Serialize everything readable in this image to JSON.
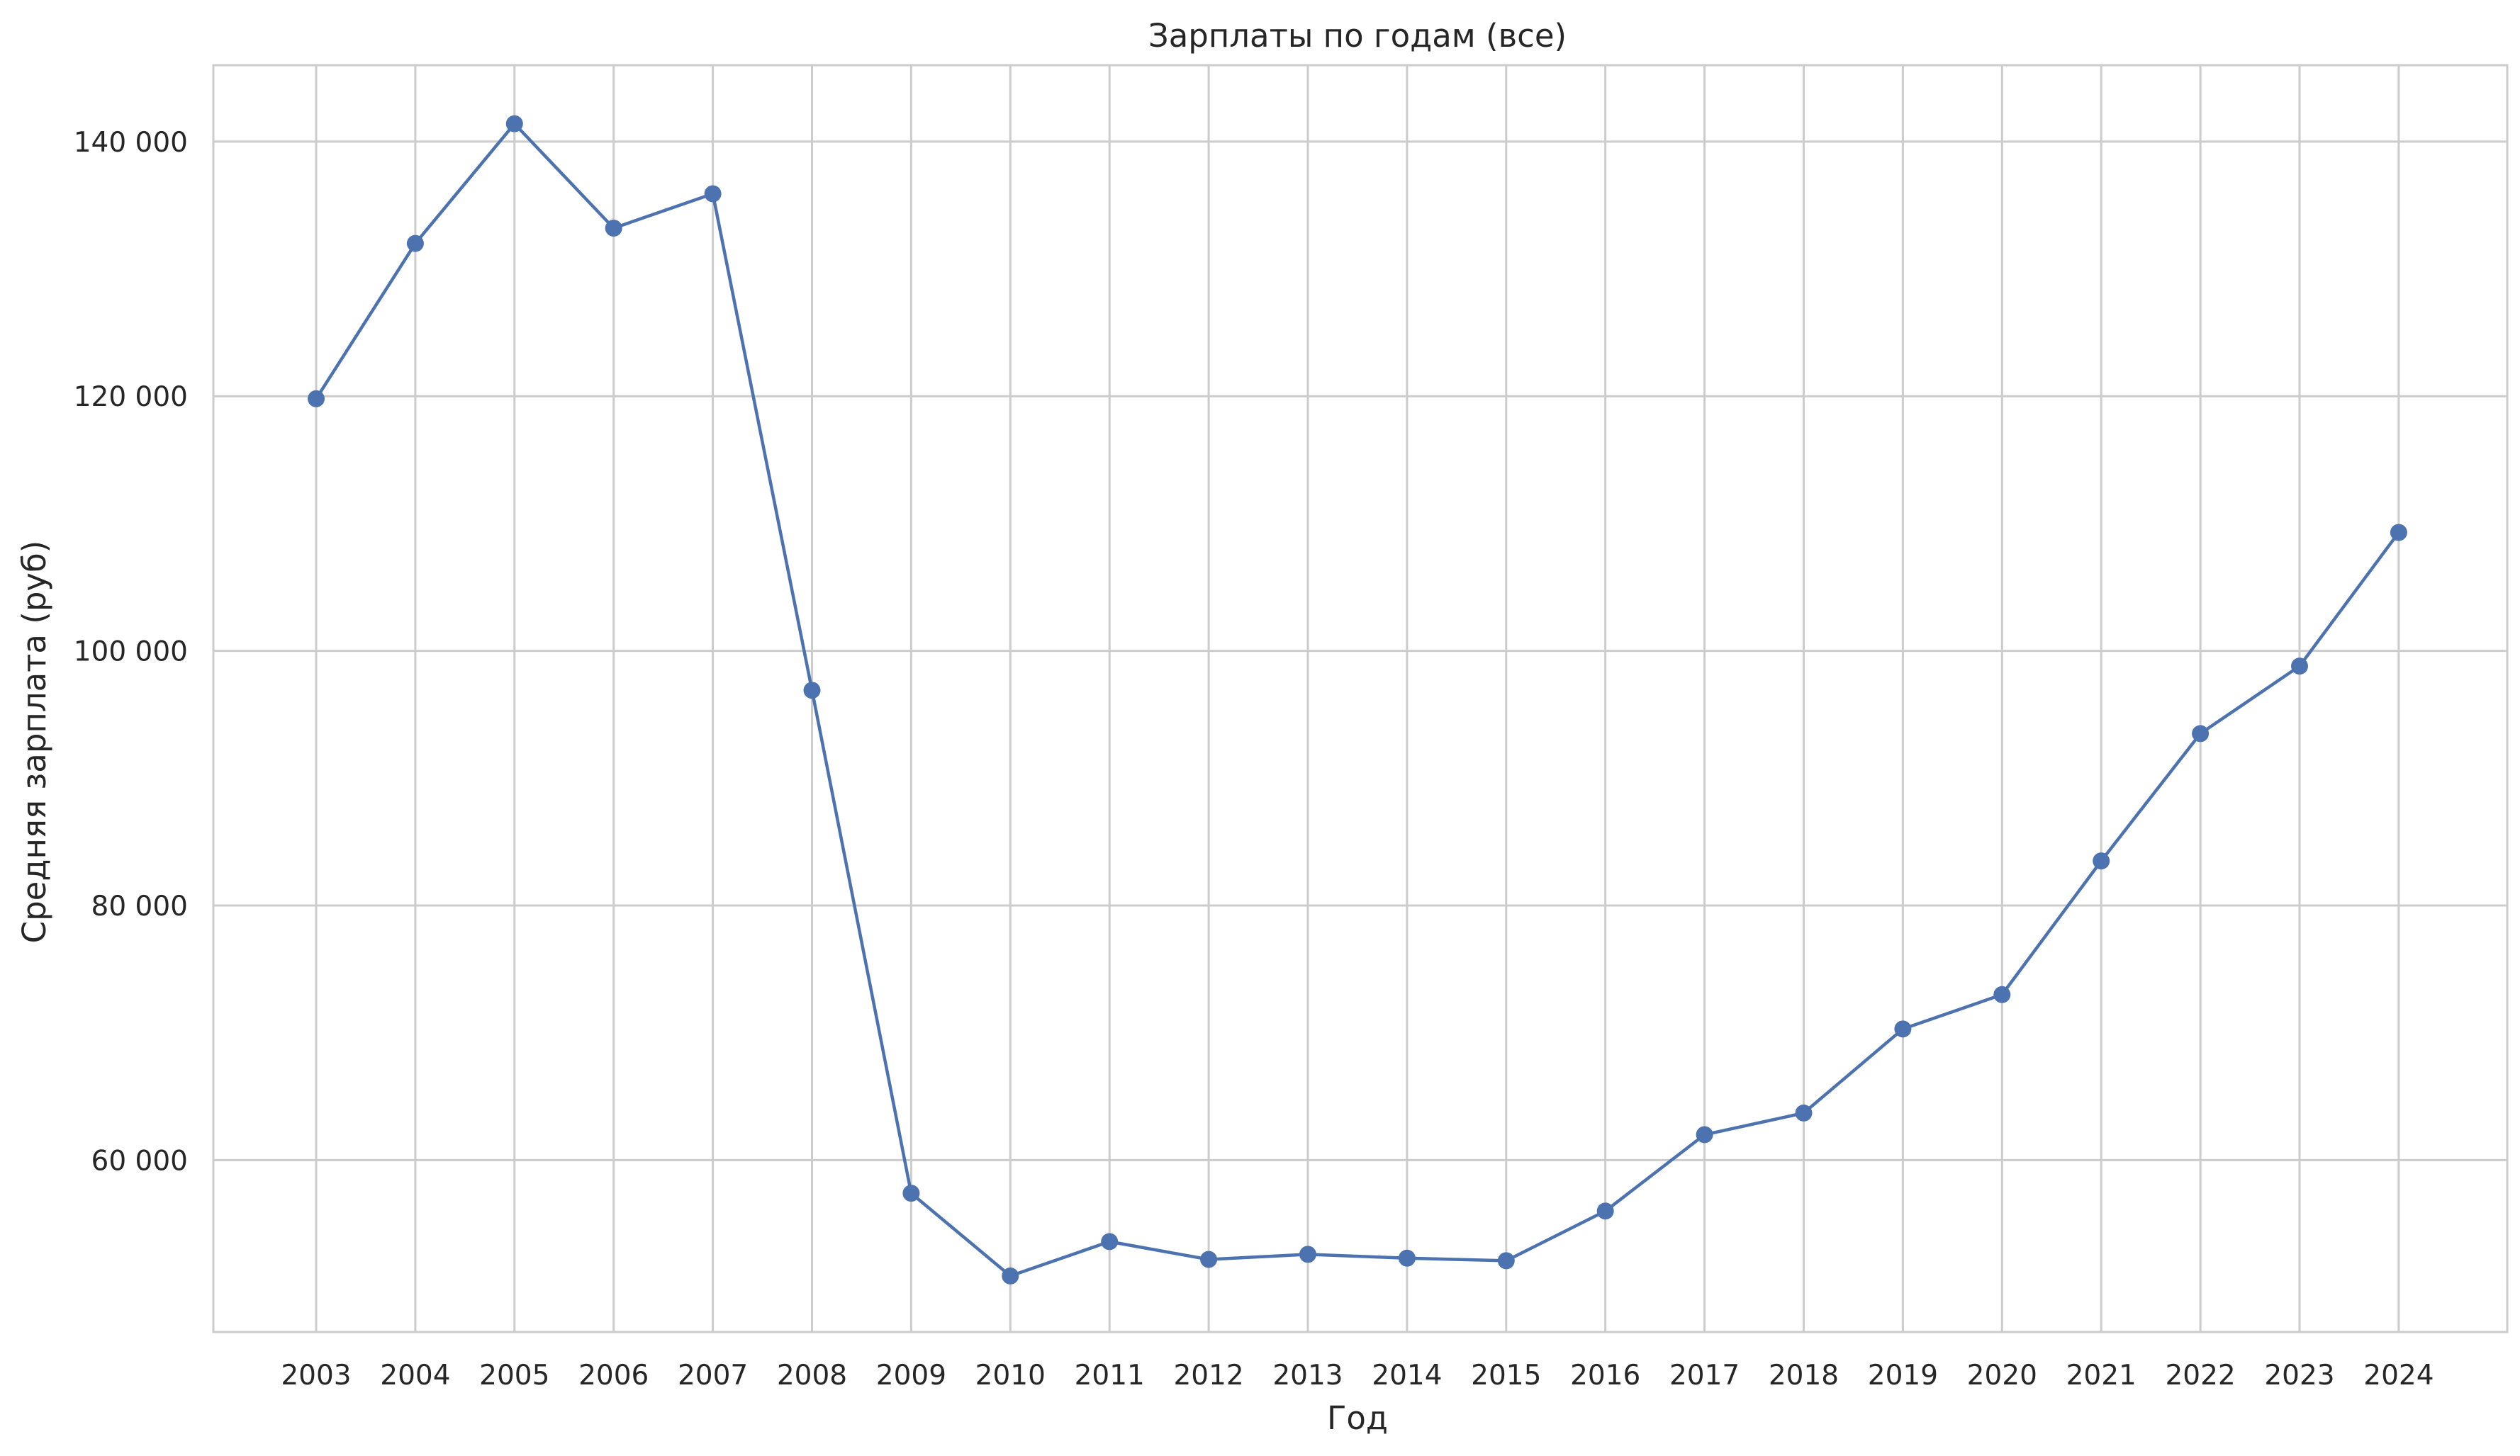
{
  "chart_data": {
    "type": "line",
    "title": "Зарплаты по годам (все)",
    "xlabel": "Год",
    "ylabel": "Средняя зарплата (руб)",
    "categories": [
      "2003",
      "2004",
      "2005",
      "2006",
      "2007",
      "2008",
      "2009",
      "2010",
      "2011",
      "2012",
      "2013",
      "2014",
      "2015",
      "2016",
      "2017",
      "2018",
      "2019",
      "2020",
      "2021",
      "2022",
      "2023",
      "2024"
    ],
    "series": [
      {
        "values": [
          119800,
          132000,
          141400,
          133200,
          135900,
          96900,
          57400,
          50900,
          53600,
          52200,
          52600,
          52300,
          52100,
          56000,
          62000,
          63700,
          70300,
          73000,
          83500,
          93500,
          98800,
          109300
        ],
        "color": "#4c72b0",
        "marker": "circle"
      }
    ],
    "ylim": [
      46500,
      146000
    ],
    "yticks": [
      60000,
      80000,
      100000,
      120000,
      140000
    ],
    "ytick_labels": [
      "60 000",
      "80 000",
      "100 000",
      "120 000",
      "140 000"
    ],
    "grid": true,
    "legend": false
  }
}
